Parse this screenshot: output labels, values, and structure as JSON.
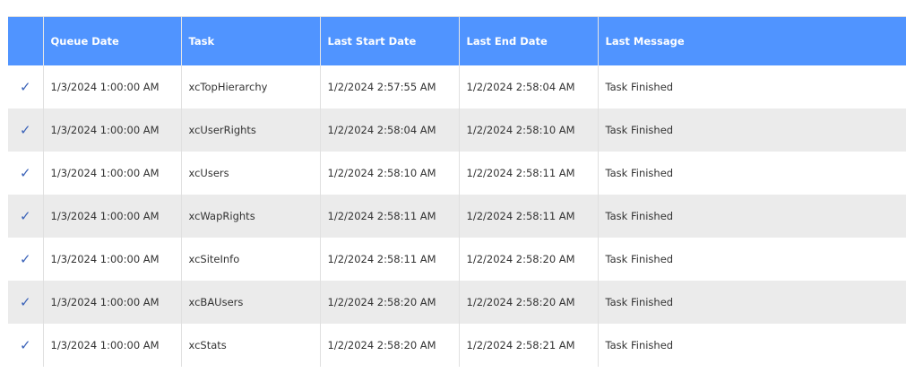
{
  "colors": {
    "header_bg": "#5094ff",
    "stripe": "#ebebeb",
    "check": "#3a62b8"
  },
  "columns": [
    "",
    "Queue Date",
    "Task",
    "Last Start Date",
    "Last End Date",
    "Last Message"
  ],
  "status_icon": "check-icon",
  "rows": [
    {
      "queue_date": "1/3/2024 1:00:00 AM",
      "task": "xcTopHierarchy",
      "last_start": "1/2/2024 2:57:55 AM",
      "last_end": "1/2/2024 2:58:04 AM",
      "message": "Task Finished"
    },
    {
      "queue_date": "1/3/2024 1:00:00 AM",
      "task": "xcUserRights",
      "last_start": "1/2/2024 2:58:04 AM",
      "last_end": "1/2/2024 2:58:10 AM",
      "message": "Task Finished"
    },
    {
      "queue_date": "1/3/2024 1:00:00 AM",
      "task": "xcUsers",
      "last_start": "1/2/2024 2:58:10 AM",
      "last_end": "1/2/2024 2:58:11 AM",
      "message": "Task Finished"
    },
    {
      "queue_date": "1/3/2024 1:00:00 AM",
      "task": "xcWapRights",
      "last_start": "1/2/2024 2:58:11 AM",
      "last_end": "1/2/2024 2:58:11 AM",
      "message": "Task Finished"
    },
    {
      "queue_date": "1/3/2024 1:00:00 AM",
      "task": "xcSiteInfo",
      "last_start": "1/2/2024 2:58:11 AM",
      "last_end": "1/2/2024 2:58:20 AM",
      "message": "Task Finished"
    },
    {
      "queue_date": "1/3/2024 1:00:00 AM",
      "task": "xcBAUsers",
      "last_start": "1/2/2024 2:58:20 AM",
      "last_end": "1/2/2024 2:58:20 AM",
      "message": "Task Finished"
    },
    {
      "queue_date": "1/3/2024 1:00:00 AM",
      "task": "xcStats",
      "last_start": "1/2/2024 2:58:20 AM",
      "last_end": "1/2/2024 2:58:21 AM",
      "message": "Task Finished"
    }
  ]
}
